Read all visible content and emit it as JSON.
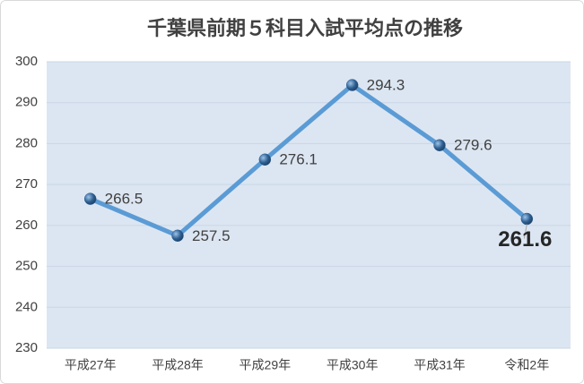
{
  "chart_data": {
    "type": "line",
    "title": "千葉県前期５科目入試平均点の推移",
    "categories": [
      "平成27年",
      "平成28年",
      "平成29年",
      "平成30年",
      "平成31年",
      "令和2年"
    ],
    "values": [
      266.5,
      257.5,
      276.1,
      294.3,
      279.6,
      261.6
    ],
    "color": "#5b9bd5",
    "marker_color": "#2e5f91",
    "plot_background": "#dce6f2",
    "ylim": [
      230,
      300
    ],
    "yticks": [
      230,
      240,
      250,
      260,
      270,
      280,
      290,
      300
    ],
    "grid": true
  }
}
